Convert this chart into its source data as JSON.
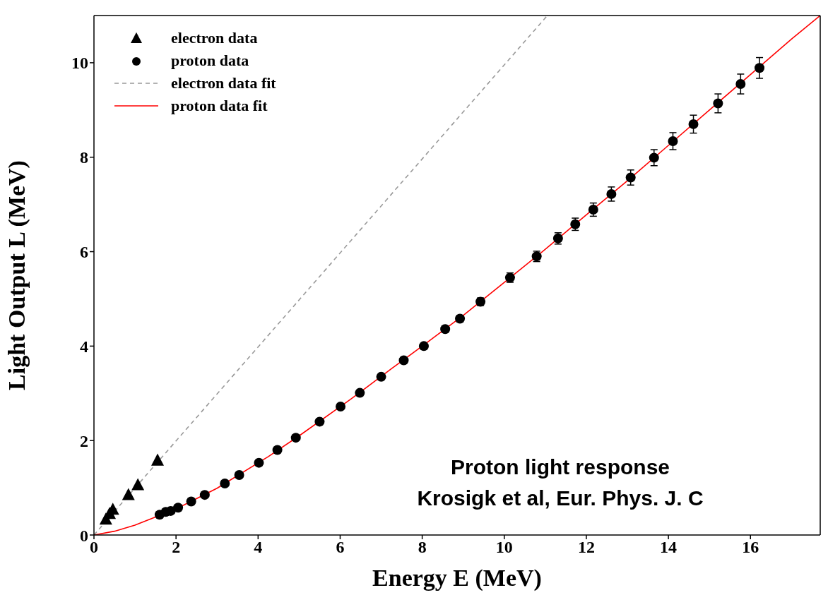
{
  "chart_data": {
    "type": "scatter",
    "xlabel": "Energy E (MeV)",
    "ylabel": "Light Output L (MeV)",
    "xlim": [
      0,
      17.7
    ],
    "ylim": [
      0,
      11
    ],
    "xticks": [
      0,
      2,
      4,
      6,
      8,
      10,
      12,
      14,
      16
    ],
    "yticks": [
      0,
      2,
      4,
      6,
      8,
      10
    ],
    "legend": "top left",
    "annotations": [
      "Proton light response",
      "Krosigk et al, Eur. Phys. J. C"
    ],
    "series": [
      {
        "name": "electron data",
        "marker": "triangle",
        "color": "#000000",
        "x": [
          0.29,
          0.38,
          0.46,
          0.84,
          1.07,
          1.55
        ],
        "values": [
          0.32,
          0.44,
          0.53,
          0.84,
          1.05,
          1.57
        ]
      },
      {
        "name": "proton data",
        "marker": "circle",
        "color": "#000000",
        "x": [
          1.6,
          1.75,
          1.87,
          2.05,
          2.37,
          2.7,
          3.19,
          3.54,
          4.02,
          4.47,
          4.92,
          5.5,
          6.01,
          6.48,
          7.0,
          7.55,
          8.04,
          8.56,
          8.92,
          9.42,
          10.14,
          10.79,
          11.31,
          11.73,
          12.17,
          12.61,
          13.08,
          13.65,
          14.11,
          14.61,
          15.21,
          15.76,
          16.22
        ],
        "values": [
          0.43,
          0.49,
          0.51,
          0.58,
          0.71,
          0.85,
          1.09,
          1.27,
          1.53,
          1.8,
          2.06,
          2.4,
          2.72,
          3.01,
          3.35,
          3.7,
          4.0,
          4.36,
          4.58,
          4.94,
          5.45,
          5.9,
          6.28,
          6.58,
          6.89,
          7.22,
          7.57,
          7.99,
          8.34,
          8.7,
          9.14,
          9.55,
          9.89
        ],
        "errors": [
          null,
          null,
          null,
          null,
          null,
          null,
          null,
          null,
          null,
          null,
          null,
          null,
          null,
          null,
          null,
          null,
          null,
          0.06,
          0.07,
          0.08,
          0.1,
          0.11,
          0.12,
          0.13,
          0.14,
          0.15,
          0.16,
          0.17,
          0.18,
          0.19,
          0.2,
          0.21,
          0.22
        ]
      },
      {
        "name": "electron data fit",
        "type": "line",
        "line_style": "dashed",
        "marker": "none",
        "color": "#999999",
        "x": [
          0,
          11.05
        ],
        "values": [
          0,
          11
        ]
      },
      {
        "name": "proton data fit",
        "type": "line",
        "line_style": "solid",
        "marker": "none",
        "color": "#ff0000",
        "x": [
          0,
          0.5,
          1,
          1.5,
          2.2,
          3,
          4.25,
          5,
          6.25,
          7.25,
          8,
          9,
          10,
          11,
          12,
          13,
          14,
          15,
          16,
          17,
          17.7
        ],
        "values": [
          0,
          0.08,
          0.21,
          0.38,
          0.64,
          0.99,
          1.66,
          2.1,
          2.87,
          3.52,
          4.0,
          4.65,
          5.35,
          6.05,
          6.78,
          7.5,
          8.25,
          9.0,
          9.75,
          10.5,
          11.0
        ]
      }
    ]
  }
}
